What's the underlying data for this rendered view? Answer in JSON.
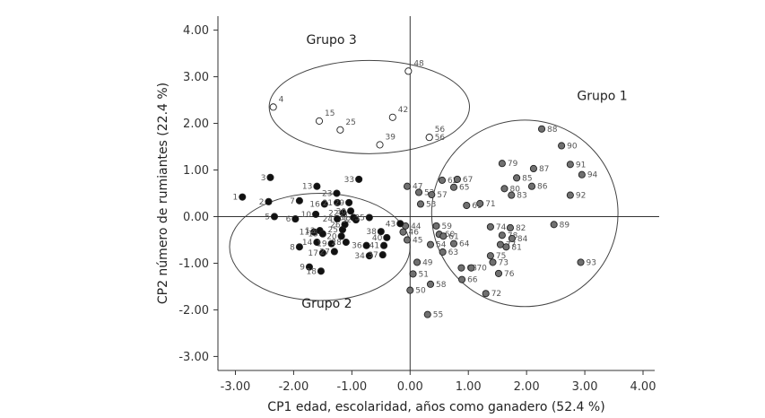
{
  "chart_data": {
    "type": "scatter",
    "xlabel": "CP1 edad, escolaridad, años como ganadero (52.4 %)",
    "ylabel": "CP2 número de rumiantes (22.4 %)",
    "xlim": [
      -3.3,
      4.2
    ],
    "ylim": [
      -3.3,
      4.3
    ],
    "x_ticks": [
      -3,
      -2,
      -1,
      0,
      1,
      2,
      3,
      4
    ],
    "y_ticks": [
      -3,
      -2,
      -1,
      0,
      1,
      2,
      3,
      4
    ],
    "x_tick_labels": [
      "-3.00",
      "-2.00",
      "-1.00",
      "0.00",
      "1.00",
      "2.00",
      "3.00",
      "4.00"
    ],
    "y_tick_labels": [
      "-3.00",
      "-2.00",
      "-1.00",
      "0.00",
      "1.00",
      "2.00",
      "3.00",
      "4.00"
    ],
    "reference_lines": {
      "x": 0,
      "y": 0
    },
    "colors": {
      "grupo_1": "#707070",
      "grupo_2": "#111111",
      "grupo_3": "#ffffff",
      "marker_edge": "#222222"
    },
    "groups": [
      {
        "label": "Grupo 1",
        "label_at": [
          3.3,
          2.5
        ],
        "ellipse": {
          "cx": 1.97,
          "cy": 0.07,
          "rx": 1.6,
          "ry": 2.0
        }
      },
      {
        "label": "Grupo 2",
        "label_at": [
          -1.43,
          -1.95
        ],
        "ellipse": {
          "cx": -1.55,
          "cy": -0.65,
          "rx": 1.55,
          "ry": 1.15
        }
      },
      {
        "label": "Grupo 3",
        "label_at": [
          -1.35,
          3.7
        ],
        "ellipse": {
          "cx": -0.7,
          "cy": 2.35,
          "rx": 1.72,
          "ry": 1.0
        }
      }
    ],
    "series": [
      {
        "name": "Grupo 1",
        "points": [
          {
            "label": "44",
            "x": -0.08,
            "y": -0.2
          },
          {
            "label": "46",
            "x": -0.12,
            "y": -0.33
          },
          {
            "label": "45",
            "x": -0.05,
            "y": -0.5
          },
          {
            "label": "47",
            "x": -0.05,
            "y": 0.65
          },
          {
            "label": "49",
            "x": 0.12,
            "y": -0.98
          },
          {
            "label": "50",
            "x": 0.0,
            "y": -1.58
          },
          {
            "label": "51",
            "x": 0.05,
            "y": -1.23
          },
          {
            "label": "52",
            "x": 0.15,
            "y": 0.52
          },
          {
            "label": "53",
            "x": 0.18,
            "y": 0.27
          },
          {
            "label": "54",
            "x": 0.35,
            "y": -0.6
          },
          {
            "label": "55",
            "x": 0.3,
            "y": -2.1
          },
          {
            "label": "56",
            "x": 0.33,
            "y": 1.7
          },
          {
            "label": "57",
            "x": 0.37,
            "y": 0.47
          },
          {
            "label": "58",
            "x": 0.35,
            "y": -1.45
          },
          {
            "label": "59",
            "x": 0.45,
            "y": -0.2
          },
          {
            "label": "60",
            "x": 0.5,
            "y": -0.38
          },
          {
            "label": "61",
            "x": 0.57,
            "y": -0.42
          },
          {
            "label": "62",
            "x": 0.55,
            "y": 0.78
          },
          {
            "label": "63",
            "x": 0.56,
            "y": -0.76
          },
          {
            "label": "64",
            "x": 0.75,
            "y": -0.58
          },
          {
            "label": "65",
            "x": 0.75,
            "y": 0.63
          },
          {
            "label": "66",
            "x": 0.89,
            "y": -1.35
          },
          {
            "label": "67",
            "x": 0.81,
            "y": 0.8
          },
          {
            "label": "68",
            "x": 0.88,
            "y": -1.1
          },
          {
            "label": "69",
            "x": 0.97,
            "y": 0.24
          },
          {
            "label": "70",
            "x": 1.05,
            "y": -1.1
          },
          {
            "label": "71",
            "x": 1.2,
            "y": 0.28
          },
          {
            "label": "72",
            "x": 1.3,
            "y": -1.65
          },
          {
            "label": "73",
            "x": 1.42,
            "y": -0.98
          },
          {
            "label": "74",
            "x": 1.38,
            "y": -0.22
          },
          {
            "label": "75",
            "x": 1.38,
            "y": -0.84
          },
          {
            "label": "76",
            "x": 1.52,
            "y": -1.22
          },
          {
            "label": "77",
            "x": 1.55,
            "y": -0.6
          },
          {
            "label": "78",
            "x": 1.58,
            "y": -0.4
          },
          {
            "label": "79",
            "x": 1.58,
            "y": 1.14
          },
          {
            "label": "80",
            "x": 1.62,
            "y": 0.6
          },
          {
            "label": "81",
            "x": 1.65,
            "y": -0.65
          },
          {
            "label": "82",
            "x": 1.72,
            "y": -0.24
          },
          {
            "label": "83",
            "x": 1.74,
            "y": 0.46
          },
          {
            "label": "84",
            "x": 1.75,
            "y": -0.47
          },
          {
            "label": "85",
            "x": 1.83,
            "y": 0.83
          },
          {
            "label": "86",
            "x": 2.09,
            "y": 0.65
          },
          {
            "label": "87",
            "x": 2.12,
            "y": 1.03
          },
          {
            "label": "88",
            "x": 2.26,
            "y": 1.88
          },
          {
            "label": "89",
            "x": 2.47,
            "y": -0.17
          },
          {
            "label": "90",
            "x": 2.6,
            "y": 1.52
          },
          {
            "label": "91",
            "x": 2.75,
            "y": 1.12
          },
          {
            "label": "92",
            "x": 2.75,
            "y": 0.46
          },
          {
            "label": "93",
            "x": 2.93,
            "y": -0.98
          },
          {
            "label": "94",
            "x": 2.95,
            "y": 0.9
          }
        ]
      },
      {
        "name": "Grupo 2",
        "points": [
          {
            "label": "1",
            "x": -2.88,
            "y": 0.42
          },
          {
            "label": "2",
            "x": -2.43,
            "y": 0.32
          },
          {
            "label": "3",
            "x": -2.4,
            "y": 0.84
          },
          {
            "label": "5",
            "x": -2.33,
            "y": 0.0
          },
          {
            "label": "6",
            "x": -1.97,
            "y": -0.05
          },
          {
            "label": "7",
            "x": -1.9,
            "y": 0.34
          },
          {
            "label": "8",
            "x": -1.9,
            "y": -0.65
          },
          {
            "label": "9",
            "x": -1.73,
            "y": -1.08
          },
          {
            "label": "10",
            "x": -1.62,
            "y": 0.05
          },
          {
            "label": "11",
            "x": -1.65,
            "y": -0.33
          },
          {
            "label": "12",
            "x": -1.55,
            "y": -0.3
          },
          {
            "label": "13",
            "x": -1.6,
            "y": 0.65
          },
          {
            "label": "14",
            "x": -1.6,
            "y": -0.55
          },
          {
            "label": "15",
            "x": -1.5,
            "y": -0.37
          },
          {
            "label": "16",
            "x": -1.47,
            "y": 0.27
          },
          {
            "label": "17",
            "x": -1.5,
            "y": -0.78
          },
          {
            "label": "18",
            "x": -1.53,
            "y": -1.17
          },
          {
            "label": "19",
            "x": -1.35,
            "y": -0.58
          },
          {
            "label": "20",
            "x": -1.18,
            "y": -0.42
          },
          {
            "label": "21",
            "x": -1.25,
            "y": 0.3
          },
          {
            "label": "22",
            "x": -1.15,
            "y": 0.08
          },
          {
            "label": "23",
            "x": -1.26,
            "y": 0.5
          },
          {
            "label": "24",
            "x": -1.25,
            "y": -0.05
          },
          {
            "label": "25",
            "x": -1.16,
            "y": -0.28
          },
          {
            "label": "26",
            "x": -1.12,
            "y": -0.17
          },
          {
            "label": "27",
            "x": -1.3,
            "y": -0.75
          },
          {
            "label": "28",
            "x": -1.1,
            "y": -0.55
          },
          {
            "label": "29",
            "x": -1.05,
            "y": 0.3
          },
          {
            "label": "30",
            "x": -1.02,
            "y": 0.12
          },
          {
            "label": "31",
            "x": -0.97,
            "y": -0.02
          },
          {
            "label": "32",
            "x": -0.93,
            "y": -0.07
          },
          {
            "label": "33",
            "x": -0.88,
            "y": 0.8
          },
          {
            "label": "34",
            "x": -0.7,
            "y": -0.84
          },
          {
            "label": "35",
            "x": -0.7,
            "y": -0.02
          },
          {
            "label": "36",
            "x": -0.75,
            "y": -0.62
          },
          {
            "label": "37",
            "x": -0.47,
            "y": -0.82
          },
          {
            "label": "38",
            "x": -0.5,
            "y": -0.32
          },
          {
            "label": "40",
            "x": -0.4,
            "y": -0.45
          },
          {
            "label": "41",
            "x": -0.45,
            "y": -0.62
          },
          {
            "label": "43",
            "x": -0.17,
            "y": -0.15
          }
        ]
      },
      {
        "name": "Grupo 3",
        "points": [
          {
            "label": "4",
            "x": -2.35,
            "y": 2.35
          },
          {
            "label": "15",
            "x": -1.56,
            "y": 2.05
          },
          {
            "label": "25",
            "x": -1.2,
            "y": 1.86
          },
          {
            "label": "39",
            "x": -0.52,
            "y": 1.54
          },
          {
            "label": "42",
            "x": -0.3,
            "y": 2.13
          },
          {
            "label": "48",
            "x": -0.03,
            "y": 3.12
          },
          {
            "label": "56",
            "x": 0.33,
            "y": 1.7
          }
        ]
      }
    ]
  }
}
